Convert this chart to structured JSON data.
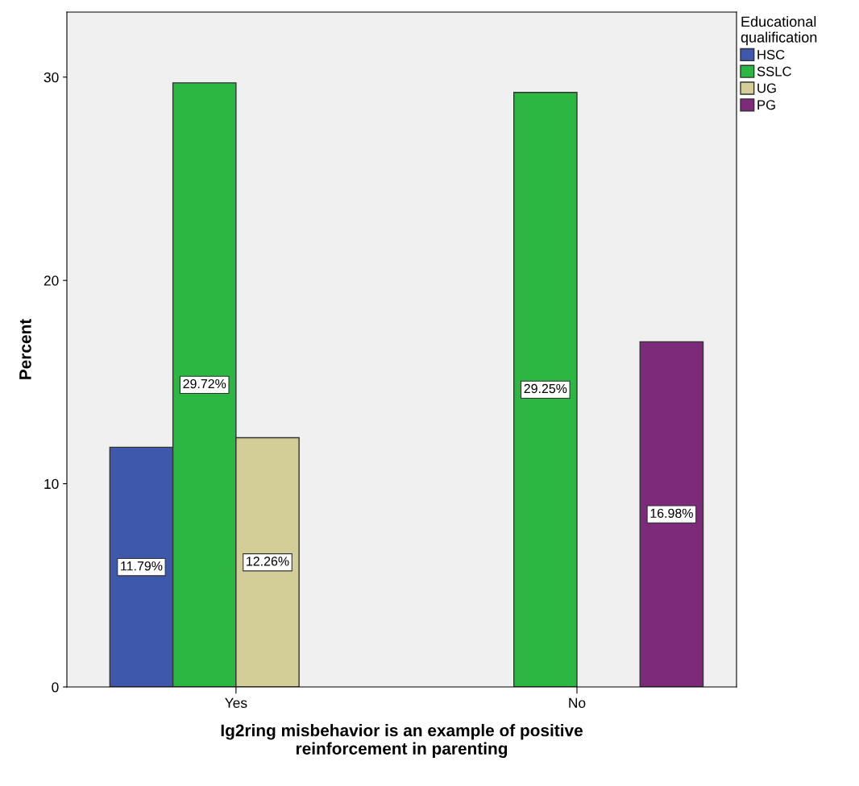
{
  "chart_data": {
    "type": "bar",
    "xlabel": "Ig2ring misbehavior is an example of positive\nreinforcement in parenting",
    "ylabel": "Percent",
    "legend_title": "Educational\nqualification",
    "categories": [
      "Yes",
      "No"
    ],
    "series": [
      {
        "name": "HSC",
        "color": "#3e58ac",
        "values": [
          11.79,
          null
        ],
        "value_labels": [
          "11.79%",
          null
        ]
      },
      {
        "name": "SSLC",
        "color": "#2cb742",
        "values": [
          29.72,
          29.25
        ],
        "value_labels": [
          "29.72%",
          "29.25%"
        ]
      },
      {
        "name": "UG",
        "color": "#d3ce97",
        "values": [
          12.26,
          null
        ],
        "value_labels": [
          "12.26%",
          null
        ]
      },
      {
        "name": "PG",
        "color": "#7d2a7b",
        "values": [
          null,
          16.98
        ],
        "value_labels": [
          null,
          "16.98%"
        ]
      }
    ],
    "ylim": [
      0,
      33.2
    ],
    "yticks": [
      0,
      10,
      20,
      30
    ],
    "grid": false,
    "legend": "top right"
  }
}
